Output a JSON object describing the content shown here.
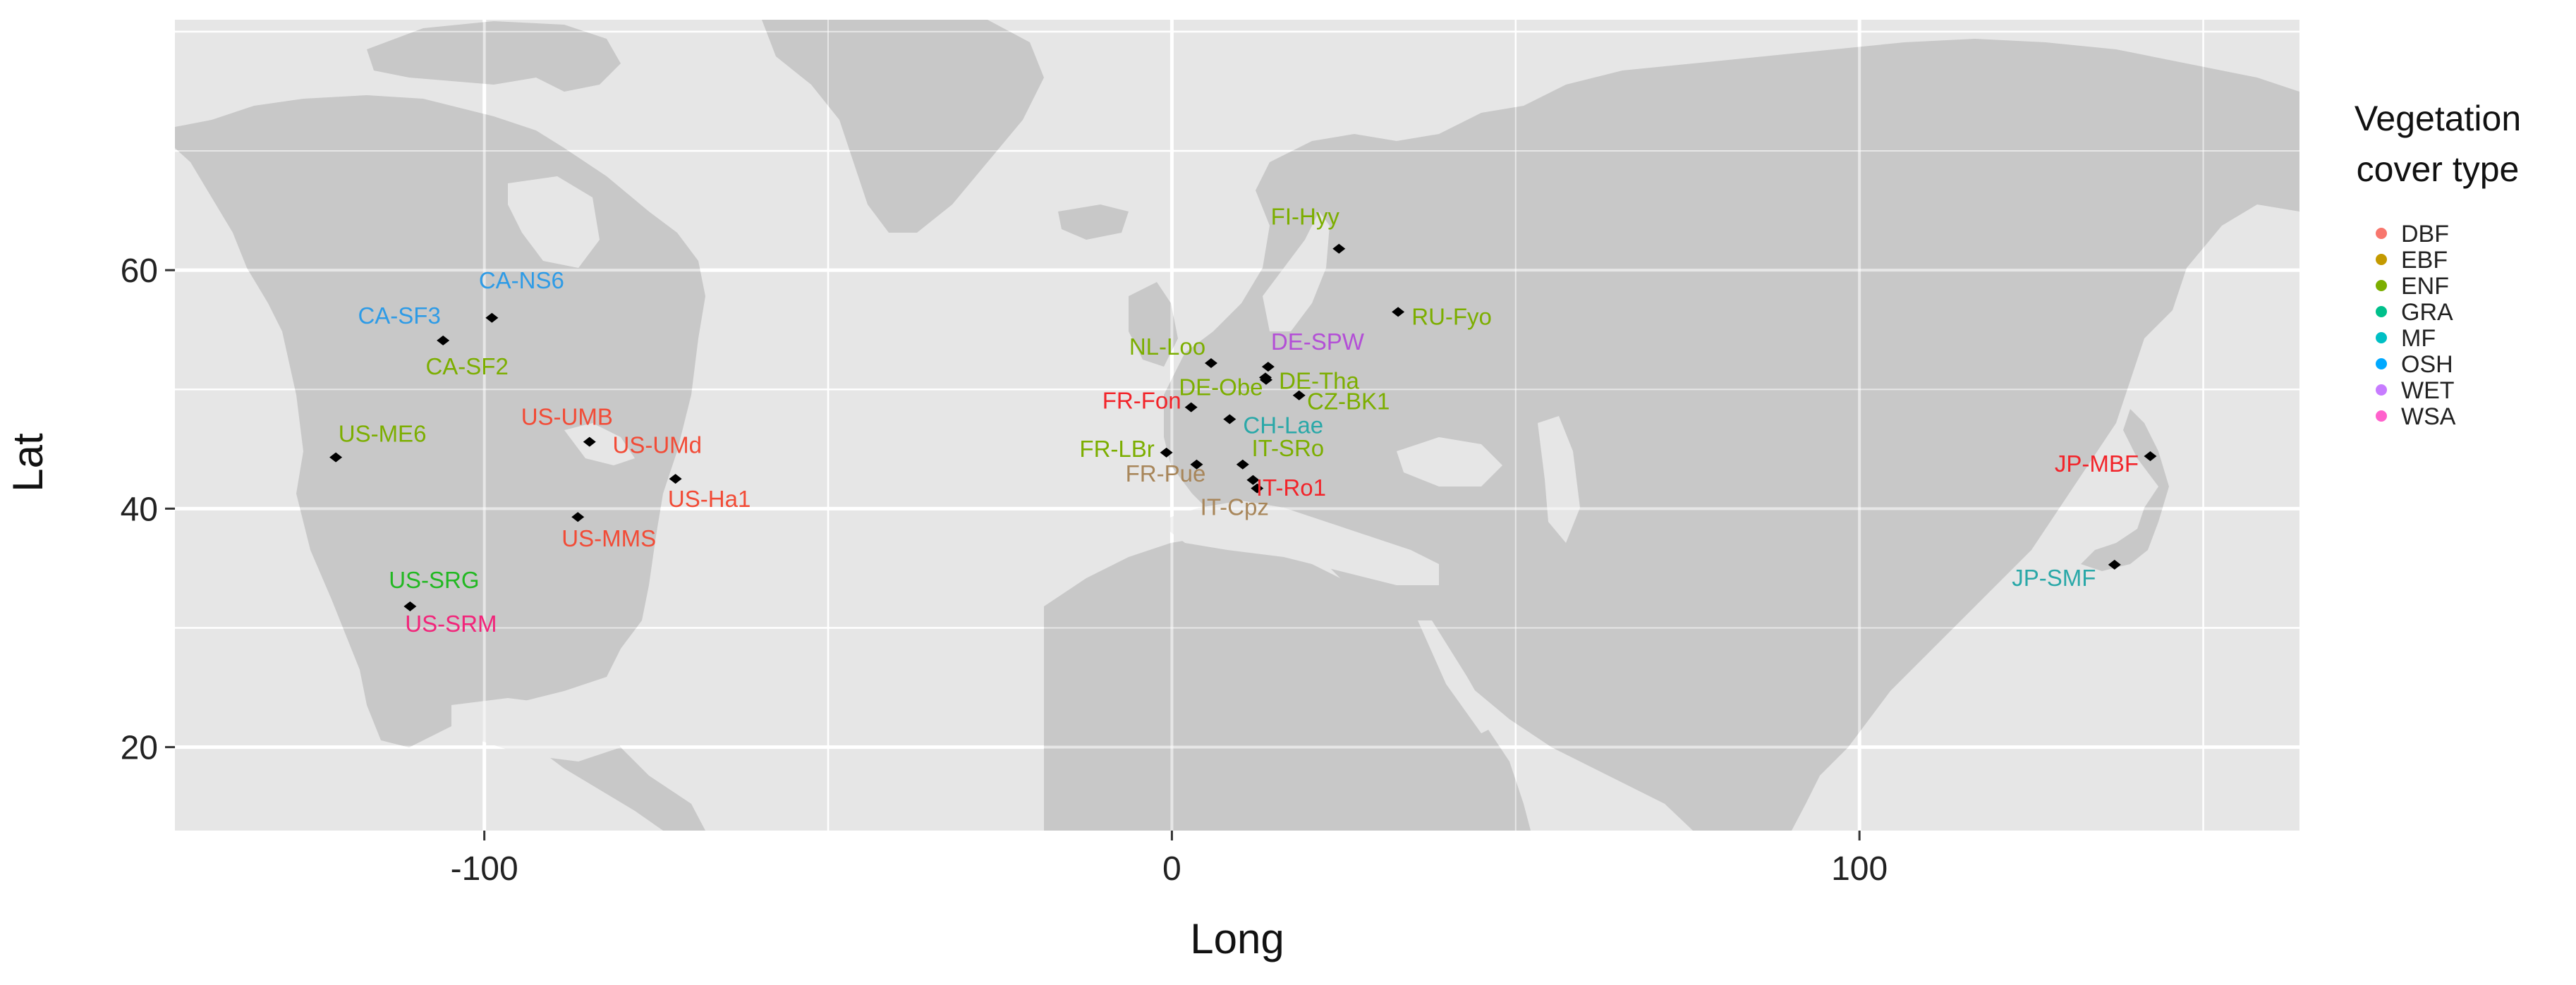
{
  "chart_data": {
    "type": "scatter",
    "xlabel": "Long",
    "ylabel": "Lat",
    "xlim": [
      -145,
      164
    ],
    "ylim": [
      13,
      81
    ],
    "x_ticks": [
      -100,
      0,
      100
    ],
    "x_tick_labels": [
      "-100",
      "0",
      "100"
    ],
    "y_ticks": [
      20,
      40,
      60
    ],
    "y_tick_labels": [
      "20",
      "40",
      "60"
    ],
    "grid": true,
    "legend": {
      "title_lines": [
        "Vegetation",
        "cover type"
      ],
      "placement": "right",
      "entries": [
        {
          "label": "DBF",
          "color": "#F8766D"
        },
        {
          "label": "EBF",
          "color": "#C49A00"
        },
        {
          "label": "ENF",
          "color": "#7CAE00"
        },
        {
          "label": "GRA",
          "color": "#00C08B"
        },
        {
          "label": "MF",
          "color": "#00BFC4"
        },
        {
          "label": "OSH",
          "color": "#00A9FF"
        },
        {
          "label": "WET",
          "color": "#C77CFF"
        },
        {
          "label": "WSA",
          "color": "#FF61CC"
        }
      ]
    },
    "points": [
      {
        "name": "CA-NS6",
        "long": -98.9,
        "lat": 56.0,
        "type": "OSH",
        "label_color": "#2E9BE6"
      },
      {
        "name": "CA-SF3",
        "long": -106.0,
        "lat": 54.1,
        "type": "OSH",
        "label_color": "#2E9BE6"
      },
      {
        "name": "CA-SF2",
        "long": -106.0,
        "lat": 54.1,
        "type": "ENF",
        "label_color": "#7CAE00"
      },
      {
        "name": "US-ME6",
        "long": -121.6,
        "lat": 44.3,
        "type": "ENF",
        "label_color": "#7CAE00"
      },
      {
        "name": "US-UMB",
        "long": -84.7,
        "lat": 45.6,
        "type": "DBF",
        "label_color": "#F24B36"
      },
      {
        "name": "US-UMd",
        "long": -84.7,
        "lat": 45.6,
        "type": "DBF",
        "label_color": "#F24B36"
      },
      {
        "name": "US-Ha1",
        "long": -72.2,
        "lat": 42.5,
        "type": "DBF",
        "label_color": "#F24B36"
      },
      {
        "name": "US-MMS",
        "long": -86.4,
        "lat": 39.3,
        "type": "DBF",
        "label_color": "#F24B36"
      },
      {
        "name": "US-SRG",
        "long": -110.8,
        "lat": 31.8,
        "type": "GRA",
        "label_color": "#22B822"
      },
      {
        "name": "US-SRM",
        "long": -110.8,
        "lat": 31.8,
        "type": "WSA",
        "label_color": "#F2247A"
      },
      {
        "name": "FI-Hyy",
        "long": 24.3,
        "lat": 61.8,
        "type": "ENF",
        "label_color": "#7CAE00"
      },
      {
        "name": "RU-Fyo",
        "long": 32.9,
        "lat": 56.5,
        "type": "ENF",
        "label_color": "#7CAE00"
      },
      {
        "name": "NL-Loo",
        "long": 5.7,
        "lat": 52.2,
        "type": "ENF",
        "label_color": "#7CAE00"
      },
      {
        "name": "DE-SPW",
        "long": 14.0,
        "lat": 51.9,
        "type": "WET",
        "label_color": "#B34FD6"
      },
      {
        "name": "DE-Obe",
        "long": 13.7,
        "lat": 50.8,
        "type": "ENF",
        "label_color": "#7CAE00"
      },
      {
        "name": "DE-Tha",
        "long": 13.6,
        "lat": 51.0,
        "type": "ENF",
        "label_color": "#7CAE00"
      },
      {
        "name": "CZ-BK1",
        "long": 18.5,
        "lat": 49.5,
        "type": "ENF",
        "label_color": "#7CAE00"
      },
      {
        "name": "FR-Fon",
        "long": 2.8,
        "lat": 48.5,
        "type": "DBF",
        "label_color": "#F2242A"
      },
      {
        "name": "CH-Lae",
        "long": 8.4,
        "lat": 47.5,
        "type": "MF",
        "label_color": "#2AA8A8"
      },
      {
        "name": "FR-LBr",
        "long": -0.8,
        "lat": 44.7,
        "type": "ENF",
        "label_color": "#7CAE00"
      },
      {
        "name": "IT-SRo",
        "long": 10.3,
        "lat": 43.7,
        "type": "ENF",
        "label_color": "#7CAE00"
      },
      {
        "name": "FR-Pue",
        "long": 3.6,
        "lat": 43.7,
        "type": "EBF",
        "label_color": "#A8865A"
      },
      {
        "name": "IT-Ro1",
        "long": 11.8,
        "lat": 42.4,
        "type": "DBF",
        "label_color": "#F2242A"
      },
      {
        "name": "IT-Cpz",
        "long": 12.4,
        "lat": 41.7,
        "type": "EBF",
        "label_color": "#A8865A"
      },
      {
        "name": "JP-MBF",
        "long": 142.3,
        "lat": 44.4,
        "type": "DBF",
        "label_color": "#F2242A"
      },
      {
        "name": "JP-SMF",
        "long": 137.1,
        "lat": 35.3,
        "type": "MF",
        "label_color": "#2AA8A8"
      }
    ]
  }
}
